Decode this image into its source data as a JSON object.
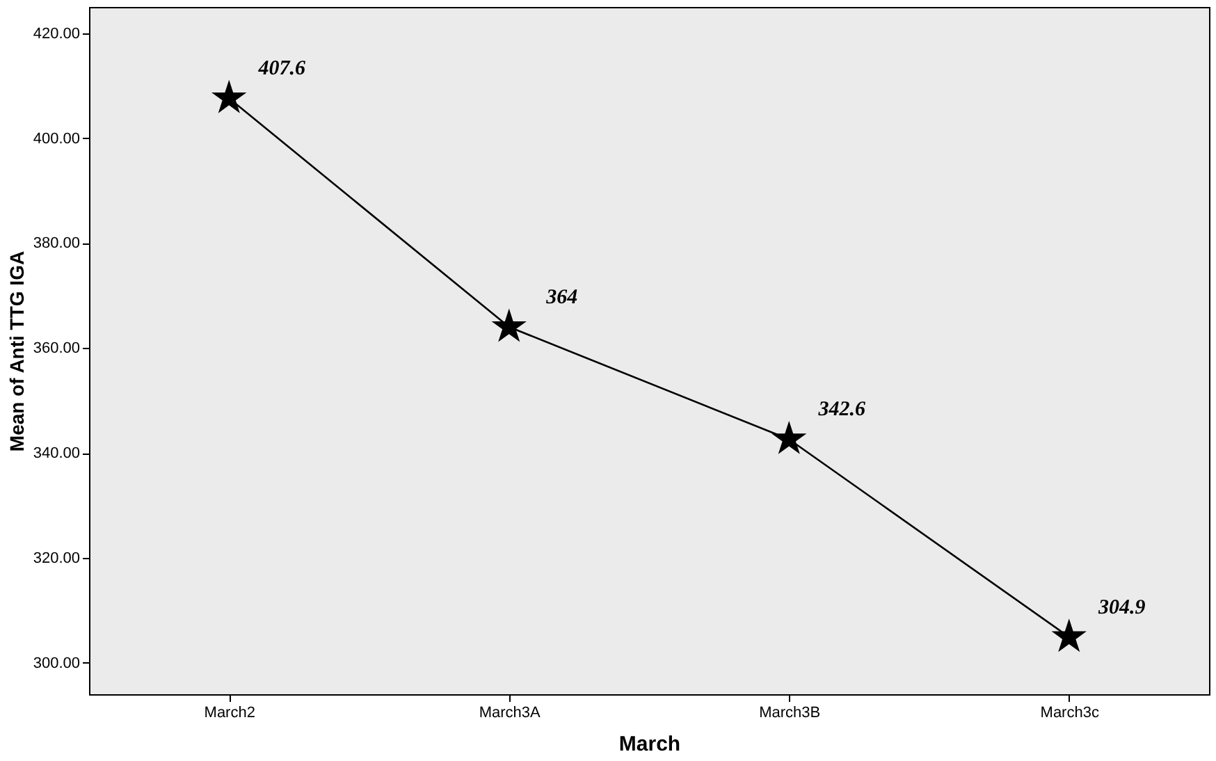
{
  "chart_data": {
    "type": "line",
    "xlabel": "March",
    "ylabel": "Mean of Anti TTG IGA",
    "categories": [
      "March2",
      "March3A",
      "March3B",
      "March3c"
    ],
    "series": [
      {
        "color": "#000000",
        "values": [
          407.6,
          364,
          342.6,
          304.9
        ]
      }
    ],
    "ylim": [
      294,
      425
    ],
    "yticks": [
      {
        "value": 300,
        "label": "300.00"
      },
      {
        "value": 320,
        "label": "320.00"
      },
      {
        "value": 340,
        "label": "340.00"
      },
      {
        "value": 360,
        "label": "360.00"
      },
      {
        "value": 380,
        "label": "380.00"
      },
      {
        "value": 400,
        "label": "400.00"
      },
      {
        "value": 420,
        "label": "420.00"
      }
    ],
    "data_labels": true,
    "marker": "star",
    "line_style": "solid",
    "grid": false
  }
}
